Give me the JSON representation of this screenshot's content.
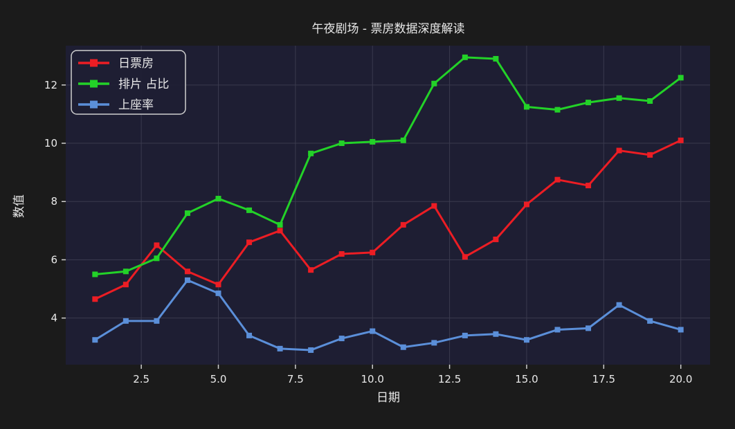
{
  "figure": {
    "background": "#1b1b1b"
  },
  "chart_data": {
    "type": "line",
    "title": "午夜剧场 - 票房数据深度解读",
    "xlabel": "日期",
    "ylabel": "数值",
    "x": [
      1,
      2,
      3,
      4,
      5,
      6,
      7,
      8,
      9,
      10,
      11,
      12,
      13,
      14,
      15,
      16,
      17,
      18,
      19,
      20
    ],
    "series": [
      {
        "name": "日票房",
        "color": "#ec1d24",
        "marker": "square",
        "values": [
          4.65,
          5.15,
          6.5,
          5.6,
          5.15,
          6.6,
          7.0,
          5.65,
          6.2,
          6.25,
          7.2,
          7.85,
          6.1,
          6.7,
          7.9,
          8.75,
          8.55,
          9.75,
          9.6,
          10.1
        ]
      },
      {
        "name": "排片 占比",
        "color": "#23d228",
        "marker": "square",
        "values": [
          5.5,
          5.6,
          6.05,
          7.6,
          8.1,
          7.7,
          7.2,
          9.65,
          10.0,
          10.05,
          10.1,
          12.05,
          12.95,
          12.9,
          11.25,
          11.15,
          11.4,
          11.55,
          11.45,
          12.25
        ]
      },
      {
        "name": "上座率",
        "color": "#5b8fd9",
        "marker": "square",
        "values": [
          3.25,
          3.9,
          3.9,
          5.3,
          4.85,
          3.4,
          2.95,
          2.9,
          3.3,
          3.55,
          3.0,
          3.15,
          3.4,
          3.45,
          3.25,
          3.6,
          3.65,
          4.45,
          3.9,
          3.6
        ]
      }
    ],
    "xlim": [
      0.05,
      20.95
    ],
    "ylim": [
      2.4,
      13.35
    ],
    "xticks": [
      2.5,
      5.0,
      7.5,
      10.0,
      12.5,
      15.0,
      17.5,
      20.0
    ],
    "xtick_labels": [
      "2.5",
      "5.0",
      "7.5",
      "10.0",
      "12.5",
      "15.0",
      "17.5",
      "20.0"
    ],
    "yticks": [
      4,
      6,
      8,
      10,
      12
    ],
    "ytick_labels": [
      "4",
      "6",
      "8",
      "10",
      "12"
    ],
    "grid": true,
    "legend_position": "upper left",
    "plot_background": "#1e1e33",
    "grid_color": "#3a3a4e",
    "tick_color": "#cfcfcf",
    "text_color": "#e9e9e9",
    "legend_border_color": "#cfcfcf"
  }
}
